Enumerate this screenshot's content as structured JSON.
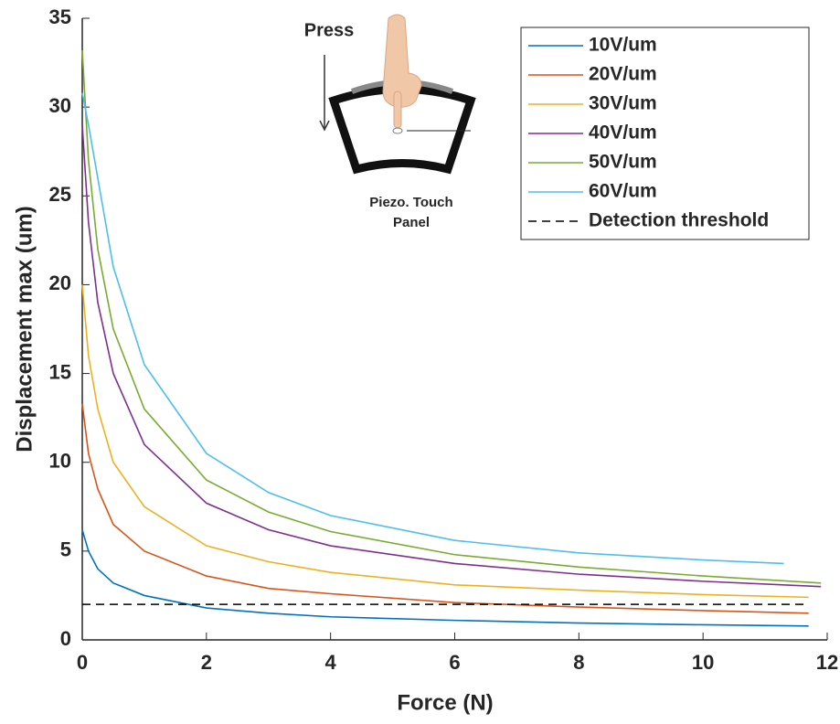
{
  "chart_data": {
    "type": "line",
    "xlabel": "Force (N)",
    "ylabel": "Displacement max (um)",
    "xlim": [
      0,
      12
    ],
    "xticks": [
      0,
      2,
      4,
      6,
      8,
      10,
      12
    ],
    "ylim": [
      0,
      35
    ],
    "yticks": [
      0,
      5,
      10,
      15,
      20,
      25,
      30,
      35
    ],
    "legend": "upper right",
    "inset": {
      "press": "Press",
      "caption": [
        "Piezo. Touch",
        "Panel"
      ]
    },
    "series": [
      {
        "name": "10V/um",
        "color": "#0072BD",
        "x": [
          0,
          0.1,
          0.25,
          0.5,
          1,
          2,
          3,
          4,
          6,
          8,
          10,
          11.7
        ],
        "values": [
          6.2,
          5.0,
          4.0,
          3.2,
          2.5,
          1.8,
          1.5,
          1.3,
          1.1,
          0.95,
          0.85,
          0.78
        ]
      },
      {
        "name": "20V/um",
        "color": "#D95319",
        "x": [
          0,
          0.1,
          0.25,
          0.5,
          1,
          2,
          3,
          4,
          6,
          8,
          10,
          11.7
        ],
        "values": [
          13.3,
          10.5,
          8.5,
          6.5,
          5.0,
          3.6,
          2.9,
          2.6,
          2.1,
          1.85,
          1.65,
          1.5
        ]
      },
      {
        "name": "30V/um",
        "color": "#EDB120",
        "x": [
          0,
          0.1,
          0.25,
          0.5,
          1,
          2,
          3,
          4,
          6,
          8,
          10,
          11.7
        ],
        "values": [
          20,
          16,
          13,
          10,
          7.5,
          5.3,
          4.4,
          3.8,
          3.1,
          2.8,
          2.55,
          2.4
        ]
      },
      {
        "name": "40V/um",
        "color": "#7E2F8E",
        "x": [
          0,
          0.1,
          0.25,
          0.5,
          1,
          2,
          3,
          4,
          6,
          8,
          10,
          11.9
        ],
        "values": [
          29,
          23.5,
          19,
          15,
          11,
          7.7,
          6.2,
          5.3,
          4.3,
          3.7,
          3.3,
          3.0
        ]
      },
      {
        "name": "50V/um",
        "color": "#77AC30",
        "x": [
          0,
          0.1,
          0.25,
          0.5,
          1,
          2,
          3,
          4,
          6,
          8,
          10,
          11.9
        ],
        "values": [
          33.2,
          27,
          22,
          17.5,
          13,
          9,
          7.2,
          6.1,
          4.8,
          4.1,
          3.6,
          3.2
        ]
      },
      {
        "name": "60V/um",
        "color": "#4DBEEE",
        "x": [
          0,
          0.1,
          0.25,
          0.5,
          1,
          2,
          3,
          4,
          6,
          8,
          10,
          11.3
        ],
        "values": [
          30.8,
          29,
          26,
          21,
          15.5,
          10.5,
          8.3,
          7.0,
          5.6,
          4.9,
          4.5,
          4.3
        ]
      },
      {
        "name": "Detection threshold",
        "color": "#000000",
        "dashed": true,
        "x": [
          0,
          11.7
        ],
        "values": [
          2,
          2
        ]
      }
    ]
  }
}
